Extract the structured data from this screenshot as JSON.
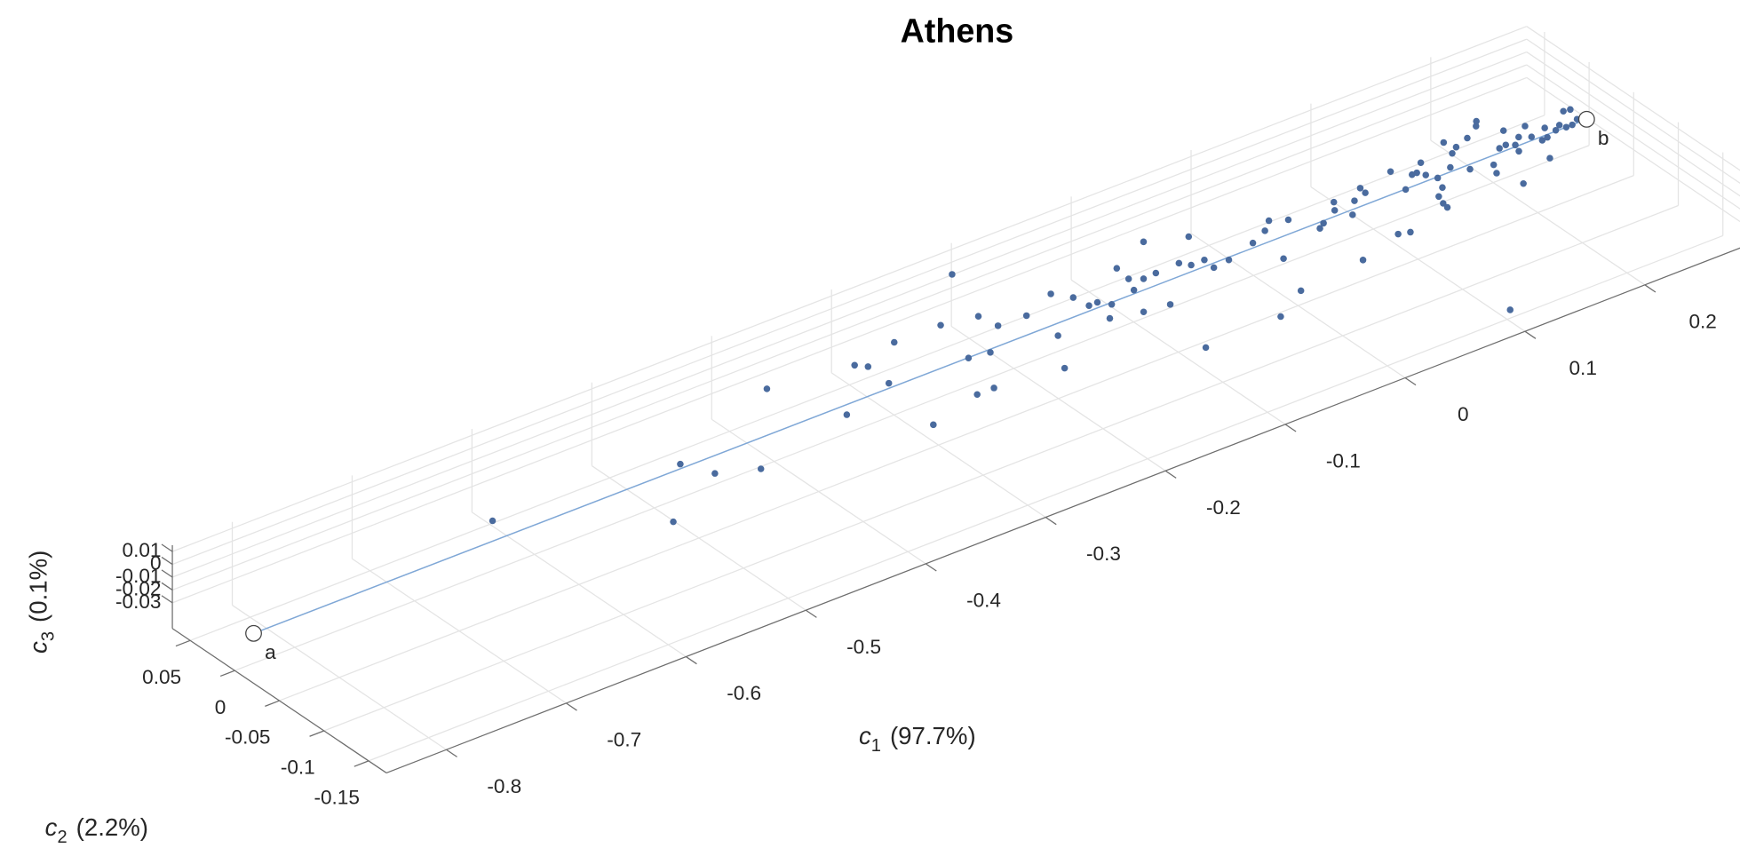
{
  "chart_data": {
    "type": "scatter3d",
    "title": "Athens",
    "xlabel": {
      "symbol": "c",
      "subscript": "1",
      "text": "(97.7%)"
    },
    "ylabel": {
      "symbol": "c",
      "subscript": "2",
      "text": "(2.2%)"
    },
    "zlabel": {
      "symbol": "c",
      "subscript": "3",
      "text": "(0.1%)"
    },
    "xlim": [
      -0.85,
      0.28
    ],
    "ylim": [
      -0.17,
      0.07
    ],
    "zlim": [
      -0.05,
      0.015
    ],
    "xticks": [
      -0.8,
      -0.7,
      -0.6,
      -0.5,
      -0.4,
      -0.3,
      -0.2,
      -0.1,
      0,
      0.1,
      0.2
    ],
    "yticks": [
      -0.15,
      -0.1,
      -0.05,
      0,
      0.05
    ],
    "zticks": [
      -0.03,
      -0.02,
      -0.01,
      0,
      0.01
    ],
    "grid": true,
    "points": {
      "color": "#4a6b9e",
      "x": [
        -0.626,
        -0.531,
        -0.482,
        -0.471,
        -0.443,
        -0.377,
        -0.355,
        -0.312,
        -0.306,
        -0.308,
        -0.273,
        -0.317,
        -0.235,
        -0.189,
        -0.246,
        -0.208,
        -0.27,
        -0.23,
        -0.256,
        -0.205,
        -0.182,
        -0.152,
        -0.181,
        -0.203,
        -0.143,
        -0.141,
        -0.134,
        -0.14,
        -0.128,
        -0.097,
        -0.099,
        -0.105,
        -0.062,
        -0.117,
        -0.091,
        -0.08,
        -0.097,
        -0.06,
        -0.034,
        -0.055,
        -0.044,
        -0.112,
        -0.045,
        -0.031,
        -0.005,
        0.011,
        0.021,
        -0.048,
        -0.001,
        0.032,
        -0.017,
        0.042,
        0.048,
        0.07,
        0.064,
        0.07,
        0.082,
        0.095,
        0.04,
        0.094,
        0.124,
        0.079,
        0.118,
        0.087,
        0.133,
        0.137,
        0.147,
        0.14,
        0.144,
        0.13,
        0.139,
        0.175,
        0.127,
        0.126,
        0.159,
        0.171,
        0.178,
        0.191,
        0.168,
        0.205,
        0.209,
        0.184,
        0.179,
        0.2,
        0.216,
        0.206,
        0.104,
        0.211,
        0.219,
        0.208,
        0.185,
        0.231,
        0.226,
        0.229,
        0.24,
        0.234,
        0.219,
        0.244,
        0.25,
        0.263,
        0.252,
        0.268,
        0.257,
        0.264
      ],
      "y": [
        0.012,
        -0.063,
        -0.005,
        -0.029,
        -0.043,
        0.039,
        -0.021,
        0.028,
        0.021,
        -0.005,
        0.036,
        -0.067,
        0.035,
        0.084,
        -0.011,
        0.029,
        -0.053,
        -0.014,
        -0.053,
        0.011,
        0.01,
        0.023,
        -0.024,
        -0.061,
        0.01,
        -0.005,
        -0.005,
        -0.027,
        -0.013,
        0.023,
        0.007,
        -0.007,
        0.04,
        -0.034,
        0.001,
        0.002,
        -0.037,
        0.003,
        0.027,
        -0.004,
        -0.004,
        -0.097,
        -0.016,
        -0.014,
        -0.006,
        0.002,
        0.011,
        -0.095,
        -0.035,
        0.004,
        -0.076,
        -0.018,
        -0.014,
        0.004,
        -0.005,
        -0.017,
        -0.003,
        0.008,
        -0.069,
        0.001,
        0.013,
        -0.056,
        -0.012,
        -0.059,
        0.001,
        0.001,
        0.01,
        -0.005,
        -0.013,
        -0.033,
        -0.025,
        0.022,
        -0.042,
        -0.048,
        -0.007,
        0.007,
        0.012,
        0.017,
        -0.017,
        0.026,
        0.031,
        -0.022,
        -0.032,
        -0.007,
        0.01,
        -0.006,
        -0.148,
        -0.01,
        -0.003,
        -0.018,
        -0.054,
        0.006,
        -0.008,
        -0.016,
        -0.004,
        -0.015,
        -0.038,
        -0.011,
        -0.007,
        0.006,
        -0.012,
        0.005,
        -0.012,
        -0.008
      ],
      "z": [
        -0.02,
        -0.02,
        -0.02,
        -0.02,
        -0.02,
        -0.02,
        -0.02,
        -0.02,
        -0.02,
        -0.02,
        -0.02,
        -0.02,
        -0.02,
        -0.02,
        -0.02,
        -0.02,
        -0.02,
        -0.02,
        -0.02,
        -0.02,
        -0.02,
        -0.02,
        -0.02,
        -0.02,
        -0.02,
        -0.02,
        -0.02,
        -0.02,
        -0.02,
        -0.02,
        -0.02,
        -0.02,
        -0.02,
        -0.02,
        -0.02,
        -0.02,
        -0.02,
        -0.02,
        -0.02,
        -0.02,
        -0.02,
        -0.02,
        -0.02,
        -0.02,
        -0.02,
        -0.02,
        -0.02,
        -0.02,
        -0.02,
        -0.02,
        -0.02,
        -0.02,
        -0.02,
        -0.02,
        -0.02,
        -0.02,
        -0.02,
        -0.02,
        -0.02,
        -0.02,
        -0.02,
        -0.02,
        -0.02,
        -0.02,
        -0.02,
        -0.02,
        -0.02,
        -0.02,
        -0.02,
        -0.02,
        -0.02,
        -0.02,
        -0.02,
        -0.02,
        -0.02,
        -0.02,
        -0.02,
        -0.02,
        -0.02,
        -0.02,
        -0.02,
        -0.02,
        -0.02,
        -0.02,
        -0.02,
        -0.02,
        -0.045,
        -0.02,
        -0.02,
        -0.02,
        -0.02,
        -0.02,
        -0.02,
        -0.02,
        -0.02,
        -0.02,
        -0.02,
        -0.02,
        -0.02,
        -0.02,
        -0.02,
        -0.02,
        -0.02,
        -0.02
      ]
    },
    "path": {
      "color": "#7fa7d6",
      "labels": [
        "a",
        "b"
      ],
      "x": [
        -0.841,
        0.269
      ],
      "y": [
        -0.009,
        -0.012
      ],
      "z": [
        -0.02,
        -0.02
      ]
    }
  }
}
